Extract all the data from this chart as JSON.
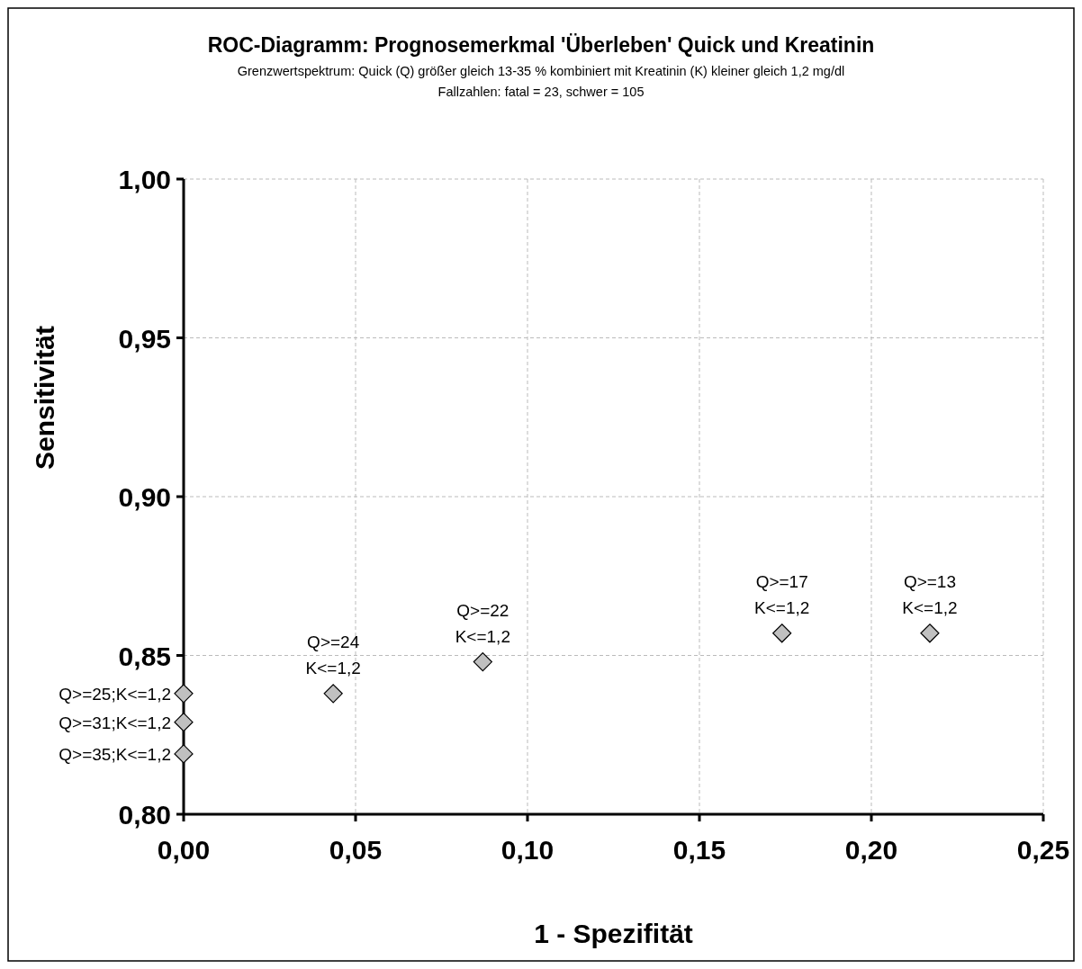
{
  "chart_data": {
    "type": "scatter",
    "title": "ROC-Diagramm: Prognosemerkmal 'Überleben' Quick und Kreatinin",
    "subtitle": "Grenzwertspektrum: Quick (Q) größer gleich 13-35 % kombiniert mit Kreatinin (K) kleiner gleich 1,2 mg/dl\nFallzahlen: fatal = 23, schwer = 105",
    "xlabel": "1 - Spezifität",
    "ylabel": "Sensitivität",
    "x": [
      0,
      0,
      0,
      0.0435,
      0.087,
      0.174,
      0.217
    ],
    "series": [
      {
        "color": "#c0c0c0",
        "values": [
          0.838,
          0.829,
          0.819,
          0.838,
          0.848,
          0.857,
          0.857
        ]
      }
    ],
    "xlim": [
      0,
      0.25
    ],
    "ylim": [
      0.8,
      1
    ],
    "xticks": [
      {
        "value": 0,
        "label": "0,00"
      },
      {
        "value": 0.05,
        "label": "0,05"
      },
      {
        "value": 0.1,
        "label": "0,10"
      },
      {
        "value": 0.15,
        "label": "0,15"
      },
      {
        "value": 0.2,
        "label": "0,20"
      },
      {
        "value": 0.25,
        "label": "0,25"
      }
    ],
    "yticks": [
      {
        "value": 0.8,
        "label": "0,80"
      },
      {
        "value": 0.85,
        "label": "0,85"
      },
      {
        "value": 0.9,
        "label": "0,90"
      },
      {
        "value": 0.95,
        "label": "0,95"
      },
      {
        "value": 1,
        "label": "1,00"
      }
    ],
    "grid": true,
    "marker": "diamond",
    "annotations": [
      {
        "text": "Q>=25;K<=1,2",
        "x": 0,
        "y": 0.838
      },
      {
        "text": "Q>=31;K<=1,2",
        "x": 0,
        "y": 0.829
      },
      {
        "text": "Q>=35;K<=1,2",
        "x": 0,
        "y": 0.819
      },
      {
        "text": "Q>=24\nK<=1,2",
        "x": 0.0435,
        "y": 0.838
      },
      {
        "text": "Q>=22\nK<=1,2",
        "x": 0.087,
        "y": 0.848
      },
      {
        "text": "Q>=17\nK<=1,2",
        "x": 0.174,
        "y": 0.857
      },
      {
        "text": "Q>=13\nK<=1,2",
        "x": 0.217,
        "y": 0.857
      }
    ]
  }
}
